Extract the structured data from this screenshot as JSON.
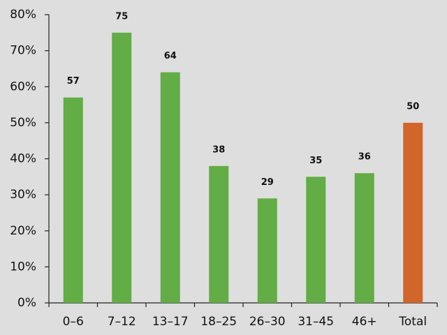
{
  "chart_data": {
    "type": "bar",
    "categories": [
      "0–6",
      "7–12",
      "13–17",
      "18–25",
      "26–30",
      "31–45",
      "46+",
      "Total"
    ],
    "values": [
      57,
      75,
      64,
      38,
      29,
      35,
      36,
      50
    ],
    "colors": [
      "#62ad45",
      "#62ad45",
      "#62ad45",
      "#62ad45",
      "#62ad45",
      "#62ad45",
      "#62ad45",
      "#d2652a"
    ],
    "ylim": [
      0,
      80
    ],
    "yticks": [
      {
        "value": 0,
        "label": "0%"
      },
      {
        "value": 10,
        "label": "10%"
      },
      {
        "value": 20,
        "label": "20%"
      },
      {
        "value": 30,
        "label": "30%"
      },
      {
        "value": 40,
        "label": "40%"
      },
      {
        "value": 50,
        "label": "50%"
      },
      {
        "value": 60,
        "label": "60%"
      },
      {
        "value": 70,
        "label": "70%"
      },
      {
        "value": 80,
        "label": "80%"
      }
    ],
    "grid": false
  }
}
